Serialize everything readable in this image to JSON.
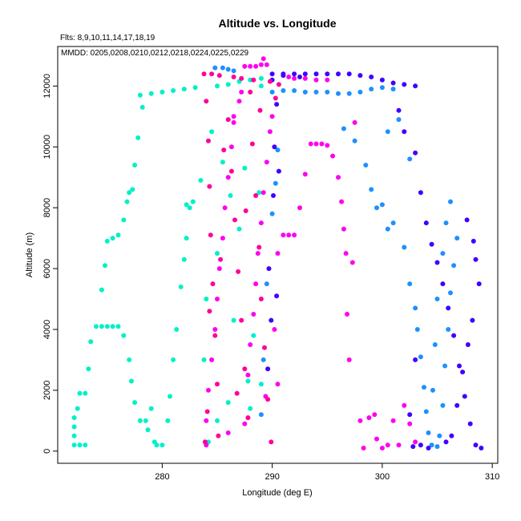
{
  "chart_data": {
    "type": "scatter",
    "title": "Altitude vs. Longitude",
    "annotations": {
      "flts": "Flts: 8,9,10,11,14,17,18,19",
      "mmdd": "MMDD: 0205,0208,0210,0212,0218,0224,0225,0229"
    },
    "xlabel": "Longitude (deg E)",
    "ylabel": "Altitude (m)",
    "xlim": [
      270.5,
      310.5
    ],
    "ylim": [
      -400,
      13300
    ],
    "xticks": [
      280,
      290,
      300,
      310
    ],
    "yticks": [
      0,
      2000,
      4000,
      6000,
      8000,
      10000,
      12000
    ],
    "grid": false,
    "series": [
      {
        "color": "#00f0c8",
        "points": [
          [
            272,
            200
          ],
          [
            272,
            500
          ],
          [
            272,
            800
          ],
          [
            272,
            1100
          ],
          [
            272.3,
            1400
          ],
          [
            272.5,
            1900
          ],
          [
            272.5,
            200
          ],
          [
            273,
            200
          ],
          [
            273,
            1900
          ],
          [
            273.3,
            2700
          ],
          [
            273.5,
            3600
          ],
          [
            274,
            4100
          ],
          [
            274.5,
            4100
          ],
          [
            275,
            4100
          ],
          [
            275.5,
            4100
          ],
          [
            276,
            4100
          ],
          [
            276.5,
            3800
          ],
          [
            277,
            3000
          ],
          [
            277.2,
            2300
          ],
          [
            277.5,
            1600
          ],
          [
            278,
            1000
          ],
          [
            278.5,
            1000
          ],
          [
            278.7,
            700
          ],
          [
            279,
            1400
          ],
          [
            279.3,
            300
          ],
          [
            279.5,
            200
          ],
          [
            280,
            200
          ],
          [
            280.5,
            1000
          ],
          [
            280.7,
            1800
          ],
          [
            281,
            3000
          ],
          [
            281.3,
            4000
          ],
          [
            281.7,
            5400
          ],
          [
            282,
            6300
          ],
          [
            282.2,
            7000
          ],
          [
            282.5,
            8000
          ],
          [
            282.8,
            8200
          ],
          [
            282.2,
            8100
          ],
          [
            274.5,
            5300
          ],
          [
            274.8,
            6100
          ],
          [
            275,
            6900
          ],
          [
            275.5,
            7000
          ],
          [
            276,
            7100
          ],
          [
            276.5,
            7600
          ],
          [
            276.8,
            8200
          ],
          [
            277,
            8500
          ],
          [
            277.3,
            8600
          ],
          [
            277.5,
            9400
          ],
          [
            277.8,
            10300
          ],
          [
            278.2,
            11300
          ],
          [
            278,
            11700
          ],
          [
            279,
            11750
          ],
          [
            280,
            11800
          ],
          [
            281,
            11850
          ],
          [
            282,
            11900
          ],
          [
            283,
            11950
          ],
          [
            283.5,
            8900
          ],
          [
            283.8,
            3000
          ],
          [
            284,
            5000
          ],
          [
            284.5,
            10500
          ],
          [
            285,
            6500
          ],
          [
            285,
            1000
          ],
          [
            286,
            1600
          ],
          [
            286.5,
            4300
          ],
          [
            287,
            7300
          ],
          [
            287.5,
            9300
          ],
          [
            288,
            1400
          ],
          [
            288.3,
            3800
          ],
          [
            288.8,
            8500
          ],
          [
            289,
            2200
          ],
          [
            289,
            12000
          ],
          [
            285,
            12000
          ],
          [
            286,
            12050
          ],
          [
            287,
            12150
          ],
          [
            288,
            12200
          ],
          [
            289,
            12250
          ],
          [
            284.2,
            300
          ],
          [
            285.5,
            9500
          ],
          [
            286.2,
            8400
          ],
          [
            287.8,
            2300
          ]
        ]
      },
      {
        "color": "#ff00ee",
        "points": [
          [
            284,
            200
          ],
          [
            284,
            1000
          ],
          [
            284.2,
            2000
          ],
          [
            284.5,
            3000
          ],
          [
            284.8,
            4000
          ],
          [
            285,
            5000
          ],
          [
            285.2,
            6000
          ],
          [
            285.5,
            7000
          ],
          [
            285.7,
            8000
          ],
          [
            286,
            9000
          ],
          [
            286.3,
            10000
          ],
          [
            286.5,
            11000
          ],
          [
            287,
            11500
          ],
          [
            287.5,
            900
          ],
          [
            287.8,
            2500
          ],
          [
            288,
            3500
          ],
          [
            288.3,
            4500
          ],
          [
            288.5,
            5500
          ],
          [
            288.7,
            6500
          ],
          [
            289,
            7500
          ],
          [
            289.2,
            8500
          ],
          [
            289.5,
            9500
          ],
          [
            289.8,
            10500
          ],
          [
            290,
            11000
          ],
          [
            290.2,
            4000
          ],
          [
            290.5,
            2200
          ],
          [
            290.5,
            6500
          ],
          [
            291,
            7100
          ],
          [
            291.5,
            7100
          ],
          [
            292,
            7100
          ],
          [
            292.5,
            8000
          ],
          [
            293,
            9100
          ],
          [
            293.5,
            10100
          ],
          [
            294,
            10100
          ],
          [
            294.5,
            10100
          ],
          [
            295,
            10050
          ],
          [
            295.5,
            9700
          ],
          [
            296,
            9000
          ],
          [
            296.3,
            8200
          ],
          [
            296.5,
            7300
          ],
          [
            296.7,
            6500
          ],
          [
            296.8,
            4500
          ],
          [
            297,
            3000
          ],
          [
            297.3,
            6200
          ],
          [
            297.5,
            10800
          ],
          [
            298,
            1000
          ],
          [
            298.3,
            100
          ],
          [
            298.8,
            1100
          ],
          [
            299.3,
            1200
          ],
          [
            299.5,
            400
          ],
          [
            300,
            100
          ],
          [
            300.5,
            200
          ],
          [
            301,
            1000
          ],
          [
            301.5,
            200
          ],
          [
            302,
            1500
          ],
          [
            302.5,
            900
          ],
          [
            303,
            300
          ],
          [
            289.5,
            12700
          ],
          [
            289,
            12700
          ],
          [
            288.5,
            12650
          ],
          [
            288,
            12650
          ],
          [
            287.5,
            12650
          ],
          [
            289.2,
            12900
          ],
          [
            292,
            12250
          ],
          [
            293,
            12250
          ],
          [
            294,
            12200
          ],
          [
            295,
            12200
          ],
          [
            291.5,
            12300
          ],
          [
            286.5,
            10800
          ],
          [
            287.2,
            11800
          ],
          [
            286,
            600
          ],
          [
            289.4,
            1800
          ]
        ]
      },
      {
        "color": "#1e90ff",
        "points": [
          [
            284.8,
            12600
          ],
          [
            285.5,
            12600
          ],
          [
            286,
            12550
          ],
          [
            286.5,
            12500
          ],
          [
            290,
            11800
          ],
          [
            291,
            11850
          ],
          [
            292,
            11850
          ],
          [
            293,
            11800
          ],
          [
            294,
            11800
          ],
          [
            295,
            11800
          ],
          [
            296,
            11750
          ],
          [
            297,
            11750
          ],
          [
            298,
            11800
          ],
          [
            299,
            11900
          ],
          [
            300,
            11950
          ],
          [
            301,
            11900
          ],
          [
            296.5,
            10600
          ],
          [
            297.5,
            10200
          ],
          [
            298.5,
            9400
          ],
          [
            299,
            8600
          ],
          [
            299.5,
            8000
          ],
          [
            300,
            8100
          ],
          [
            300.5,
            7300
          ],
          [
            301,
            7500
          ],
          [
            302,
            6700
          ],
          [
            302.5,
            5500
          ],
          [
            303,
            4700
          ],
          [
            303.2,
            4000
          ],
          [
            303.5,
            3100
          ],
          [
            303.8,
            2100
          ],
          [
            304,
            1300
          ],
          [
            304.2,
            600
          ],
          [
            304.5,
            200
          ],
          [
            305,
            150
          ],
          [
            305.2,
            500
          ],
          [
            305.5,
            1500
          ],
          [
            305.7,
            2800
          ],
          [
            306,
            4000
          ],
          [
            306.2,
            5200
          ],
          [
            306.5,
            6100
          ],
          [
            306.8,
            7000
          ],
          [
            306.2,
            8200
          ],
          [
            305.8,
            7500
          ],
          [
            305.5,
            6500
          ],
          [
            305,
            5000
          ],
          [
            304.8,
            3500
          ],
          [
            304.6,
            2000
          ],
          [
            290.5,
            9900
          ],
          [
            290.3,
            8800
          ],
          [
            290,
            7800
          ],
          [
            289.5,
            5500
          ],
          [
            289.2,
            3000
          ],
          [
            289,
            1200
          ],
          [
            301.5,
            10900
          ],
          [
            302.5,
            9600
          ],
          [
            300.5,
            10500
          ]
        ]
      },
      {
        "color": "#4000ff",
        "points": [
          [
            290,
            12400
          ],
          [
            291,
            12400
          ],
          [
            292,
            12400
          ],
          [
            293,
            12400
          ],
          [
            294,
            12400
          ],
          [
            295,
            12400
          ],
          [
            296,
            12400
          ],
          [
            297,
            12400
          ],
          [
            298,
            12350
          ],
          [
            299,
            12300
          ],
          [
            300,
            12200
          ],
          [
            301,
            12100
          ],
          [
            302,
            12050
          ],
          [
            303,
            12000
          ],
          [
            291,
            12350
          ],
          [
            292.5,
            12300
          ],
          [
            301.5,
            11200
          ],
          [
            302,
            10500
          ],
          [
            303,
            9800
          ],
          [
            303.5,
            8500
          ],
          [
            304,
            7500
          ],
          [
            304.5,
            6800
          ],
          [
            305,
            6200
          ],
          [
            305.5,
            5500
          ],
          [
            306,
            4700
          ],
          [
            306.5,
            3800
          ],
          [
            307,
            2800
          ],
          [
            307.5,
            1800
          ],
          [
            308,
            900
          ],
          [
            308.5,
            200
          ],
          [
            309,
            100
          ],
          [
            307.7,
            7600
          ],
          [
            308.3,
            6900
          ],
          [
            308.5,
            6300
          ],
          [
            308.8,
            5500
          ],
          [
            308.2,
            4300
          ],
          [
            307.8,
            3500
          ],
          [
            307.3,
            2600
          ],
          [
            306.8,
            1500
          ],
          [
            306.3,
            500
          ],
          [
            305.8,
            300
          ],
          [
            304.2,
            100
          ],
          [
            303.5,
            200
          ],
          [
            302.8,
            150
          ],
          [
            302.5,
            1200
          ],
          [
            303,
            3000
          ],
          [
            290,
            12200
          ],
          [
            290.4,
            11400
          ],
          [
            290.2,
            10000
          ],
          [
            290.6,
            9200
          ],
          [
            290.1,
            8400
          ],
          [
            289.7,
            6000
          ],
          [
            289.9,
            4300
          ],
          [
            290.4,
            5100
          ],
          [
            289.6,
            2700
          ]
        ]
      },
      {
        "color": "#ff0099",
        "points": [
          [
            283.8,
            12400
          ],
          [
            284.5,
            12400
          ],
          [
            285.2,
            12350
          ],
          [
            286.5,
            12300
          ],
          [
            287.2,
            12250
          ],
          [
            288.3,
            12200
          ],
          [
            284,
            11500
          ],
          [
            284.2,
            10200
          ],
          [
            284.3,
            8700
          ],
          [
            284.4,
            7100
          ],
          [
            284.6,
            5500
          ],
          [
            284.8,
            3800
          ],
          [
            285,
            2200
          ],
          [
            285.1,
            500
          ],
          [
            286,
            10900
          ],
          [
            286.3,
            9200
          ],
          [
            286.6,
            7600
          ],
          [
            286.9,
            5900
          ],
          [
            287.2,
            4300
          ],
          [
            287.5,
            2700
          ],
          [
            287.8,
            1100
          ],
          [
            288,
            11800
          ],
          [
            288.2,
            10100
          ],
          [
            288.5,
            8400
          ],
          [
            288.8,
            6700
          ],
          [
            289,
            5000
          ],
          [
            289.3,
            3400
          ],
          [
            289.6,
            1700
          ],
          [
            289.9,
            300
          ],
          [
            283.9,
            300
          ],
          [
            284.1,
            1300
          ],
          [
            284.3,
            4600
          ],
          [
            285.3,
            6300
          ],
          [
            285.6,
            9900
          ],
          [
            286.8,
            1900
          ],
          [
            287.6,
            7900
          ],
          [
            288.9,
            11200
          ],
          [
            290.3,
            11600
          ],
          [
            290.6,
            12050
          ],
          [
            289.8,
            12150
          ]
        ]
      }
    ]
  }
}
